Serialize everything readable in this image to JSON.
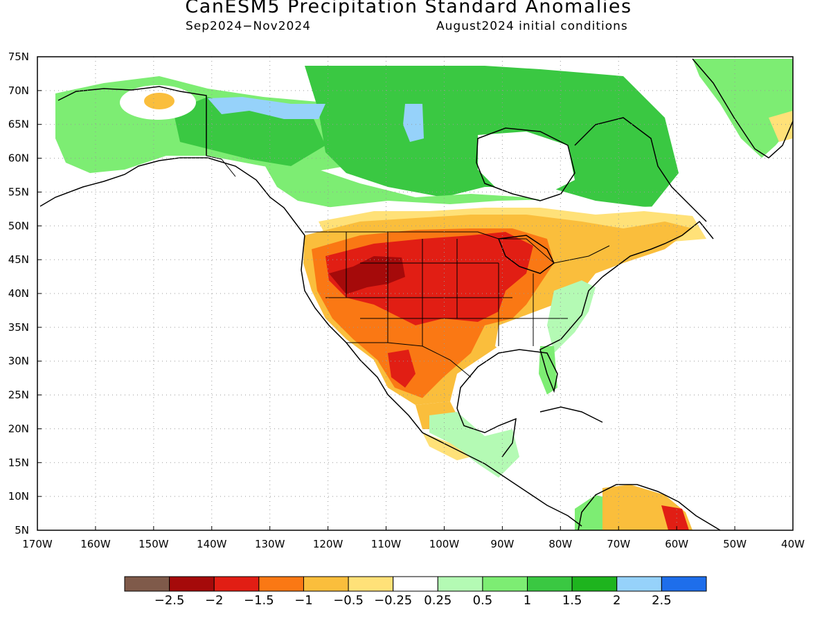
{
  "header": {
    "title": "CanESM5 Precipitation Standard Anomalies",
    "period": "Sep2024−Nov2024",
    "init": "August2024 initial conditions"
  },
  "map": {
    "lon_range": [
      -170,
      -40
    ],
    "lat_range": [
      5,
      75
    ],
    "lon_ticks": [
      "170W",
      "160W",
      "150W",
      "140W",
      "130W",
      "120W",
      "110W",
      "100W",
      "90W",
      "80W",
      "70W",
      "60W",
      "50W",
      "40W"
    ],
    "lat_ticks": [
      "5N",
      "10N",
      "15N",
      "20N",
      "25N",
      "30N",
      "35N",
      "40N",
      "45N",
      "50N",
      "55N",
      "60N",
      "65N",
      "70N",
      "75N"
    ],
    "grid": "dotted",
    "anomaly_regions": [
      {
        "name": "alaska",
        "level": 1,
        "color": "#7ded73"
      },
      {
        "name": "north-canada",
        "level": 1.5,
        "color": "#3ac842"
      },
      {
        "name": "yukon-wet-core",
        "level": 2,
        "color": "#96d2fa"
      },
      {
        "name": "hudson-wet-core",
        "level": 2,
        "color": "#96d2fa"
      },
      {
        "name": "southern-canada-dry-edge",
        "level": -0.5,
        "color": "#ffe178"
      },
      {
        "name": "northern-plains",
        "level": -1,
        "color": "#fabe3c"
      },
      {
        "name": "western-us",
        "level": -1.5,
        "color": "#fa7814"
      },
      {
        "name": "central-us",
        "level": -2,
        "color": "#e11e14"
      },
      {
        "name": "great-basin-core",
        "level": -2.5,
        "color": "#a50a0a"
      },
      {
        "name": "southeast-us",
        "level": 0.5,
        "color": "#b4fab4"
      },
      {
        "name": "greenland",
        "level": 1,
        "color": "#7ded73"
      },
      {
        "name": "mexico",
        "level": -1.5,
        "color": "#fa7814"
      },
      {
        "name": "central-america",
        "level": 0.5,
        "color": "#b4fab4"
      },
      {
        "name": "venezuela",
        "level": -1,
        "color": "#fabe3c"
      }
    ]
  },
  "colorbar": {
    "colors": [
      "#7f5a4a",
      "#a50a0a",
      "#e11e14",
      "#fa7814",
      "#fabe3c",
      "#ffe178",
      "#ffffff",
      "#b4fab4",
      "#7ded73",
      "#3ac842",
      "#1eb41e",
      "#96d2fa",
      "#1e6eeb"
    ],
    "labels": [
      "−2.5",
      "−2",
      "−1.5",
      "−1",
      "−0.5",
      "−0.25",
      "0.25",
      "0.5",
      "1",
      "1.5",
      "2",
      "2.5"
    ]
  }
}
